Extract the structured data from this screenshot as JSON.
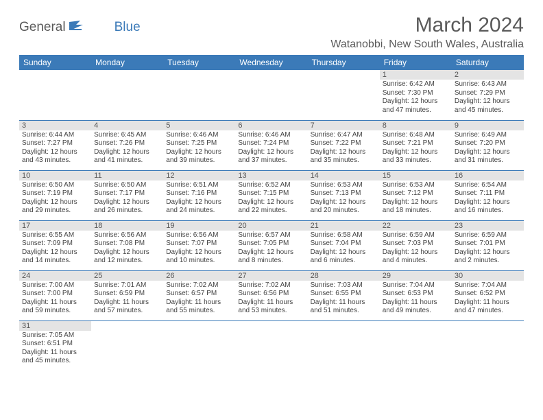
{
  "logo": {
    "text1": "General",
    "text2": "Blue"
  },
  "title": "March 2024",
  "location": "Watanobbi, New South Wales, Australia",
  "colors": {
    "header_bg": "#3b7ab8",
    "header_fg": "#ffffff",
    "daynum_bg": "#e4e4e4",
    "text": "#444444",
    "rule": "#3b7ab8"
  },
  "day_headers": [
    "Sunday",
    "Monday",
    "Tuesday",
    "Wednesday",
    "Thursday",
    "Friday",
    "Saturday"
  ],
  "weeks": [
    [
      null,
      null,
      null,
      null,
      null,
      {
        "n": "1",
        "sr": "Sunrise: 6:42 AM",
        "ss": "Sunset: 7:30 PM",
        "d1": "Daylight: 12 hours",
        "d2": "and 47 minutes."
      },
      {
        "n": "2",
        "sr": "Sunrise: 6:43 AM",
        "ss": "Sunset: 7:29 PM",
        "d1": "Daylight: 12 hours",
        "d2": "and 45 minutes."
      }
    ],
    [
      {
        "n": "3",
        "sr": "Sunrise: 6:44 AM",
        "ss": "Sunset: 7:27 PM",
        "d1": "Daylight: 12 hours",
        "d2": "and 43 minutes."
      },
      {
        "n": "4",
        "sr": "Sunrise: 6:45 AM",
        "ss": "Sunset: 7:26 PM",
        "d1": "Daylight: 12 hours",
        "d2": "and 41 minutes."
      },
      {
        "n": "5",
        "sr": "Sunrise: 6:46 AM",
        "ss": "Sunset: 7:25 PM",
        "d1": "Daylight: 12 hours",
        "d2": "and 39 minutes."
      },
      {
        "n": "6",
        "sr": "Sunrise: 6:46 AM",
        "ss": "Sunset: 7:24 PM",
        "d1": "Daylight: 12 hours",
        "d2": "and 37 minutes."
      },
      {
        "n": "7",
        "sr": "Sunrise: 6:47 AM",
        "ss": "Sunset: 7:22 PM",
        "d1": "Daylight: 12 hours",
        "d2": "and 35 minutes."
      },
      {
        "n": "8",
        "sr": "Sunrise: 6:48 AM",
        "ss": "Sunset: 7:21 PM",
        "d1": "Daylight: 12 hours",
        "d2": "and 33 minutes."
      },
      {
        "n": "9",
        "sr": "Sunrise: 6:49 AM",
        "ss": "Sunset: 7:20 PM",
        "d1": "Daylight: 12 hours",
        "d2": "and 31 minutes."
      }
    ],
    [
      {
        "n": "10",
        "sr": "Sunrise: 6:50 AM",
        "ss": "Sunset: 7:19 PM",
        "d1": "Daylight: 12 hours",
        "d2": "and 29 minutes."
      },
      {
        "n": "11",
        "sr": "Sunrise: 6:50 AM",
        "ss": "Sunset: 7:17 PM",
        "d1": "Daylight: 12 hours",
        "d2": "and 26 minutes."
      },
      {
        "n": "12",
        "sr": "Sunrise: 6:51 AM",
        "ss": "Sunset: 7:16 PM",
        "d1": "Daylight: 12 hours",
        "d2": "and 24 minutes."
      },
      {
        "n": "13",
        "sr": "Sunrise: 6:52 AM",
        "ss": "Sunset: 7:15 PM",
        "d1": "Daylight: 12 hours",
        "d2": "and 22 minutes."
      },
      {
        "n": "14",
        "sr": "Sunrise: 6:53 AM",
        "ss": "Sunset: 7:13 PM",
        "d1": "Daylight: 12 hours",
        "d2": "and 20 minutes."
      },
      {
        "n": "15",
        "sr": "Sunrise: 6:53 AM",
        "ss": "Sunset: 7:12 PM",
        "d1": "Daylight: 12 hours",
        "d2": "and 18 minutes."
      },
      {
        "n": "16",
        "sr": "Sunrise: 6:54 AM",
        "ss": "Sunset: 7:11 PM",
        "d1": "Daylight: 12 hours",
        "d2": "and 16 minutes."
      }
    ],
    [
      {
        "n": "17",
        "sr": "Sunrise: 6:55 AM",
        "ss": "Sunset: 7:09 PM",
        "d1": "Daylight: 12 hours",
        "d2": "and 14 minutes."
      },
      {
        "n": "18",
        "sr": "Sunrise: 6:56 AM",
        "ss": "Sunset: 7:08 PM",
        "d1": "Daylight: 12 hours",
        "d2": "and 12 minutes."
      },
      {
        "n": "19",
        "sr": "Sunrise: 6:56 AM",
        "ss": "Sunset: 7:07 PM",
        "d1": "Daylight: 12 hours",
        "d2": "and 10 minutes."
      },
      {
        "n": "20",
        "sr": "Sunrise: 6:57 AM",
        "ss": "Sunset: 7:05 PM",
        "d1": "Daylight: 12 hours",
        "d2": "and 8 minutes."
      },
      {
        "n": "21",
        "sr": "Sunrise: 6:58 AM",
        "ss": "Sunset: 7:04 PM",
        "d1": "Daylight: 12 hours",
        "d2": "and 6 minutes."
      },
      {
        "n": "22",
        "sr": "Sunrise: 6:59 AM",
        "ss": "Sunset: 7:03 PM",
        "d1": "Daylight: 12 hours",
        "d2": "and 4 minutes."
      },
      {
        "n": "23",
        "sr": "Sunrise: 6:59 AM",
        "ss": "Sunset: 7:01 PM",
        "d1": "Daylight: 12 hours",
        "d2": "and 2 minutes."
      }
    ],
    [
      {
        "n": "24",
        "sr": "Sunrise: 7:00 AM",
        "ss": "Sunset: 7:00 PM",
        "d1": "Daylight: 11 hours",
        "d2": "and 59 minutes."
      },
      {
        "n": "25",
        "sr": "Sunrise: 7:01 AM",
        "ss": "Sunset: 6:59 PM",
        "d1": "Daylight: 11 hours",
        "d2": "and 57 minutes."
      },
      {
        "n": "26",
        "sr": "Sunrise: 7:02 AM",
        "ss": "Sunset: 6:57 PM",
        "d1": "Daylight: 11 hours",
        "d2": "and 55 minutes."
      },
      {
        "n": "27",
        "sr": "Sunrise: 7:02 AM",
        "ss": "Sunset: 6:56 PM",
        "d1": "Daylight: 11 hours",
        "d2": "and 53 minutes."
      },
      {
        "n": "28",
        "sr": "Sunrise: 7:03 AM",
        "ss": "Sunset: 6:55 PM",
        "d1": "Daylight: 11 hours",
        "d2": "and 51 minutes."
      },
      {
        "n": "29",
        "sr": "Sunrise: 7:04 AM",
        "ss": "Sunset: 6:53 PM",
        "d1": "Daylight: 11 hours",
        "d2": "and 49 minutes."
      },
      {
        "n": "30",
        "sr": "Sunrise: 7:04 AM",
        "ss": "Sunset: 6:52 PM",
        "d1": "Daylight: 11 hours",
        "d2": "and 47 minutes."
      }
    ],
    [
      {
        "n": "31",
        "sr": "Sunrise: 7:05 AM",
        "ss": "Sunset: 6:51 PM",
        "d1": "Daylight: 11 hours",
        "d2": "and 45 minutes."
      },
      null,
      null,
      null,
      null,
      null,
      null
    ]
  ]
}
